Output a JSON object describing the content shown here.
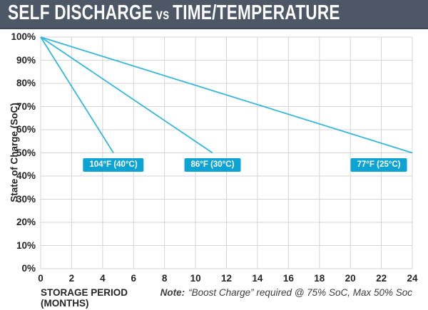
{
  "header": {
    "title_part1": "SELF DISCHARGE",
    "title_vs": "vs",
    "title_part2": "TIME/TEMPERATURE"
  },
  "chart_data": {
    "type": "line",
    "title": "SELF DISCHARGE vs TIME/TEMPERATURE",
    "xlabel": "STORAGE PERIOD (MONTHS)",
    "ylabel": "State of Charge (SoC)",
    "note_label": "Note:",
    "note_text": "“Boost Charge” required @ 75% SoC, Max 50% Soc",
    "xlim": [
      0,
      24
    ],
    "ylim": [
      0,
      100
    ],
    "x_ticks": [
      0,
      2,
      4,
      6,
      8,
      10,
      12,
      14,
      16,
      18,
      20,
      22,
      24
    ],
    "y_tick_labels": [
      "0%",
      "10%",
      "20%",
      "30%",
      "40%",
      "50%",
      "60%",
      "70%",
      "80%",
      "90%",
      "100%"
    ],
    "grid": true,
    "legend_position": "inline-labels-on-lines",
    "series": [
      {
        "name": "104°F (40°C)",
        "points": [
          [
            0,
            100
          ],
          [
            4.7,
            50
          ]
        ]
      },
      {
        "name": "86°F (30°C)",
        "points": [
          [
            0,
            100
          ],
          [
            11.1,
            50
          ]
        ]
      },
      {
        "name": "77°F (25°C)",
        "points": [
          [
            0,
            100
          ],
          [
            24,
            50
          ]
        ]
      }
    ],
    "colors": {
      "line": "#35b6dd",
      "label_bg": "#0da4d4",
      "grid": "#d5d5d5",
      "header_bg": "#4d5765",
      "text": "#262424"
    }
  }
}
